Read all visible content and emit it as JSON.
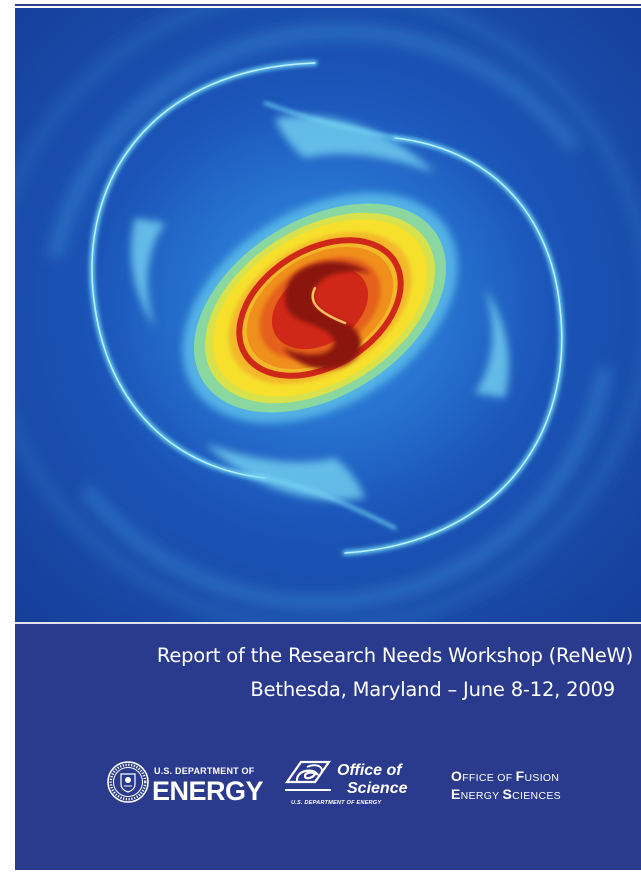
{
  "cover": {
    "title_line_1": "Report of the Research Needs Workshop (ReNeW)",
    "title_line_2": "Bethesda, Maryland – June 8-12, 2009"
  },
  "logos": {
    "doe": {
      "top": "U.S. DEPARTMENT OF",
      "main": "ENERGY"
    },
    "office_of_science": {
      "line1": "Office of",
      "line2": "Science",
      "sub": "U.S. DEPARTMENT OF ENERGY"
    },
    "ofes": {
      "line1": [
        {
          "cap": "O",
          "rest": "FFICE OF "
        },
        {
          "cap": "F",
          "rest": "USION"
        }
      ],
      "line2": [
        {
          "cap": "E",
          "rest": "NERGY "
        },
        {
          "cap": "S",
          "rest": "CIENCES"
        }
      ]
    }
  },
  "colors": {
    "background": "#2a3a8c",
    "art_background": "#1a52b8",
    "ring": "#5ec8ee",
    "core_outer": "#8ad8a0",
    "core_yellow": "#f6e02c",
    "core_orange": "#f0901c",
    "core_red": "#d02818",
    "core_dark": "#8a1410"
  }
}
